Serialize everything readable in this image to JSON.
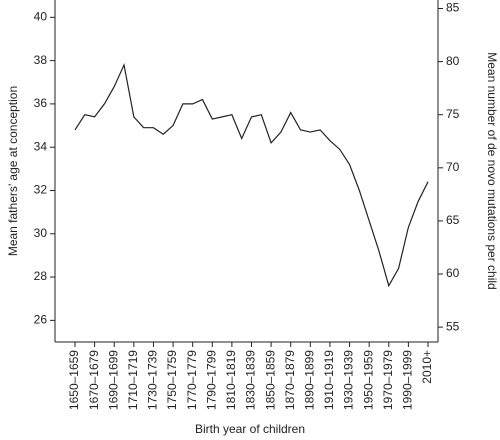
{
  "chart_data": {
    "type": "line",
    "x_label": "Birth year of children",
    "y_label": "Mean fathers’ age at conception",
    "y2_label": "Mean number of de novo mutations per child",
    "categories": [
      "1650–1659",
      null,
      "1670–1679",
      null,
      "1690–1699",
      null,
      "1710–1719",
      null,
      "1730–1739",
      null,
      "1750–1759",
      null,
      "1770–1779",
      null,
      "1790–1799",
      null,
      "1810–1819",
      null,
      "1830–1839",
      null,
      "1850–1859",
      null,
      "1870–1879",
      null,
      "1890–1899",
      null,
      "1910–1919",
      null,
      "1930–1939",
      null,
      "1950–1959",
      null,
      "1970–1979",
      null,
      "1990–1999",
      null,
      "2010+"
    ],
    "series": [
      {
        "color": "#222222",
        "values": [
          34.8,
          35.5,
          35.4,
          36.0,
          36.8,
          37.8,
          35.4,
          34.9,
          34.9,
          34.6,
          35.0,
          36.0,
          36.0,
          36.2,
          35.3,
          35.4,
          35.5,
          34.4,
          35.4,
          35.5,
          34.2,
          34.7,
          35.6,
          34.8,
          34.7,
          34.8,
          34.3,
          33.9,
          33.2,
          32.0,
          30.6,
          29.2,
          27.6,
          28.4,
          30.3,
          31.5,
          32.4
        ]
      }
    ],
    "ylim": [
      25,
      40.8
    ],
    "yticks": [
      26,
      28,
      30,
      32,
      34,
      36,
      38,
      40
    ],
    "y2lim": [
      53.6,
      85.8
    ],
    "y2ticks": [
      55,
      60,
      65,
      70,
      75,
      80,
      85
    ]
  }
}
